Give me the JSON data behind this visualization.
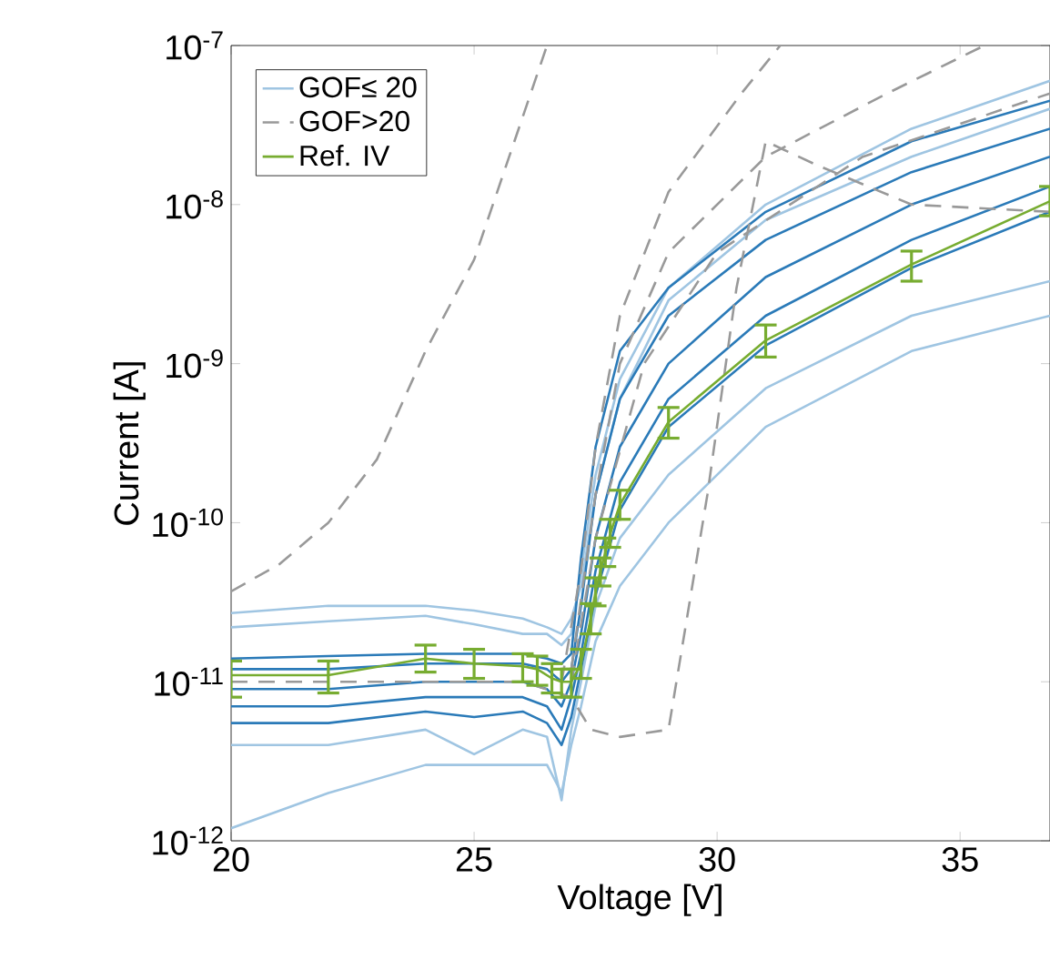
{
  "chart_data": {
    "type": "line",
    "xlabel": "Voltage [V]",
    "ylabel": "Current [A]",
    "log": "y",
    "xlim": [
      20,
      36.85
    ],
    "ylim": [
      1e-12,
      1e-07
    ],
    "xticks": [
      20,
      25,
      30,
      35
    ],
    "yticks": [
      {
        "value": 1e-12,
        "label": "10$^{-12}$"
      },
      {
        "value": 1e-11,
        "label": "10$^{-11}$"
      },
      {
        "value": 1e-10,
        "label": "10$^{-10}$"
      },
      {
        "value": 1e-09,
        "label": "10$^{-9}$"
      },
      {
        "value": 1e-08,
        "label": "10$^{-8}$"
      },
      {
        "value": 1e-07,
        "label": "10$^{-7}$"
      }
    ],
    "legend": "top left",
    "series": [
      {
        "name": "GOF≤ 20",
        "color": "#9fc5e2",
        "x": [
          20,
          22,
          24,
          25,
          26,
          26.5,
          26.8,
          27,
          27.2,
          27.5,
          28,
          29,
          31,
          34,
          36.85
        ],
        "values": [
          2.2e-11,
          2.4e-11,
          2.6e-11,
          2.3e-11,
          2e-11,
          2e-11,
          1.7e-11,
          2e-11,
          5e-11,
          2e-10,
          8e-10,
          3e-09,
          1e-08,
          3e-08,
          6e-08
        ]
      },
      {
        "color": "#9fc5e2",
        "x": [
          20,
          22,
          24,
          25,
          26,
          26.5,
          26.8,
          27,
          27.2,
          27.5,
          28,
          29,
          31,
          34,
          36.85
        ],
        "values": [
          2.7e-11,
          3e-11,
          3e-11,
          2.8e-11,
          2.5e-11,
          2.2e-11,
          2e-11,
          2.5e-11,
          4e-11,
          1.5e-10,
          6e-10,
          2.5e-09,
          8e-09,
          2e-08,
          4e-08
        ]
      },
      {
        "color": "#9fc5e2",
        "x": [
          20,
          22,
          24,
          25,
          26,
          26.5,
          26.8,
          27,
          27.2,
          27.5,
          28,
          29,
          31,
          34,
          36.85
        ],
        "values": [
          1.2e-12,
          2e-12,
          3e-12,
          3e-12,
          3e-12,
          3e-12,
          2e-12,
          4e-12,
          7e-12,
          1.8e-11,
          4e-11,
          1e-10,
          4e-10,
          1.2e-09,
          2e-09
        ]
      },
      {
        "color": "#9fc5e2",
        "x": [
          20,
          22,
          24,
          25,
          26,
          26.5,
          26.8,
          27,
          27.2,
          27.5,
          28,
          29,
          31,
          34,
          36.85
        ],
        "values": [
          4e-12,
          4e-12,
          5e-12,
          3.5e-12,
          5e-12,
          4.5e-12,
          1.8e-12,
          5e-12,
          1e-11,
          3e-11,
          8e-11,
          2e-10,
          7e-10,
          2e-09,
          3.3e-09
        ]
      },
      {
        "color": "#2a7ab8",
        "x": [
          20,
          22,
          24,
          25,
          26,
          26.5,
          26.8,
          27,
          27.2,
          27.5,
          28,
          29,
          31,
          34,
          36.85
        ],
        "values": [
          1.4e-11,
          1.45e-11,
          1.5e-11,
          1.5e-11,
          1.5e-11,
          1.4e-11,
          1.3e-11,
          1.5e-11,
          6e-11,
          3e-10,
          1.2e-09,
          3e-09,
          9e-09,
          2.5e-08,
          4.5e-08
        ]
      },
      {
        "color": "#2a7ab8",
        "x": [
          20,
          22,
          24,
          25,
          26,
          26.5,
          26.8,
          27,
          27.2,
          27.5,
          28,
          29,
          31,
          34,
          36.85
        ],
        "values": [
          1.2e-11,
          1.2e-11,
          1.3e-11,
          1.3e-11,
          1.3e-11,
          1.2e-11,
          1e-11,
          1.2e-11,
          3e-11,
          1.5e-10,
          6e-10,
          2e-09,
          6e-09,
          1.6e-08,
          3e-08
        ]
      },
      {
        "color": "#2a7ab8",
        "x": [
          20,
          22,
          24,
          25,
          26,
          26.5,
          26.8,
          27,
          27.2,
          27.5,
          28,
          29,
          31,
          34,
          36.85
        ],
        "values": [
          9e-12,
          9e-12,
          1e-11,
          1e-11,
          1e-11,
          9e-12,
          7e-12,
          1e-11,
          2e-11,
          8e-11,
          3e-10,
          1e-09,
          3.5e-09,
          1e-08,
          2e-08
        ]
      },
      {
        "color": "#2a7ab8",
        "x": [
          20,
          22,
          24,
          25,
          26,
          26.5,
          26.8,
          27,
          27.2,
          27.5,
          28,
          29,
          31,
          34,
          36.85
        ],
        "values": [
          7e-12,
          7e-12,
          8e-12,
          8e-12,
          8e-12,
          7e-12,
          5e-12,
          8e-12,
          1.5e-11,
          5e-11,
          1.8e-10,
          6e-10,
          2e-09,
          6e-09,
          1.3e-08
        ]
      },
      {
        "color": "#2a7ab8",
        "x": [
          20,
          22,
          24,
          25,
          26,
          26.5,
          26.8,
          27,
          27.2,
          27.5,
          28,
          29,
          31,
          34,
          36.85
        ],
        "values": [
          5.5e-12,
          5.5e-12,
          6.5e-12,
          6e-12,
          6.5e-12,
          5.5e-12,
          4e-12,
          6e-12,
          1.2e-11,
          3.5e-11,
          1.2e-10,
          4e-10,
          1.3e-09,
          4e-09,
          9e-09
        ]
      },
      {
        "name": "GOF>20",
        "line_style": "dashed",
        "color": "#999999",
        "x": [
          20,
          21,
          22,
          23,
          24,
          25,
          26.5
        ],
        "values": [
          3.7e-11,
          5.5e-11,
          1e-10,
          2.5e-10,
          1.2e-09,
          4.5e-09,
          1e-07
        ]
      },
      {
        "line_style": "dashed",
        "color": "#999999",
        "x": [
          20,
          26,
          27,
          27.4,
          28,
          29,
          29.8,
          30.4,
          31,
          32,
          34,
          36.85
        ],
        "values": [
          1e-11,
          1e-11,
          8e-12,
          5e-12,
          4.5e-12,
          5e-12,
          1.5e-10,
          3e-09,
          2.5e-08,
          1.8e-08,
          1e-08,
          9e-09
        ]
      },
      {
        "line_style": "dashed",
        "color": "#999999",
        "x": [
          26.8,
          27.2,
          27.5,
          28,
          29,
          30.5,
          31.3
        ],
        "values": [
          1e-11,
          5e-11,
          3e-10,
          2e-09,
          1.2e-08,
          5e-08,
          1e-07
        ]
      },
      {
        "line_style": "dashed",
        "color": "#999999",
        "x": [
          27,
          27.5,
          28,
          29,
          31,
          33.5,
          35.5
        ],
        "values": [
          1.2e-11,
          1.5e-10,
          1e-09,
          5e-09,
          2e-08,
          5e-08,
          1e-07
        ]
      },
      {
        "line_style": "dashed",
        "color": "#999999",
        "x": [
          27,
          27.5,
          28.5,
          30,
          33,
          36.85
        ],
        "values": [
          1e-11,
          8e-11,
          1e-09,
          5e-09,
          2e-08,
          5e-08
        ]
      },
      {
        "name": "Ref. IV",
        "color": "#77ac30",
        "x": [
          20,
          22,
          24,
          25,
          26,
          26.3,
          26.6,
          26.8,
          27,
          27.2,
          27.4,
          27.5,
          27.6,
          27.7,
          27.8,
          28,
          29,
          31,
          34,
          36.85
        ],
        "values": [
          1.1e-11,
          1.1e-11,
          1.4e-11,
          1.3e-11,
          1.25e-11,
          1.2e-11,
          1.05e-11,
          1e-11,
          1e-11,
          1.3e-11,
          2.5e-11,
          3.7e-11,
          5e-11,
          6.5e-11,
          8.5e-11,
          1.3e-10,
          4.3e-10,
          1.4e-09,
          4.2e-09,
          1.05e-08
        ],
        "errors": [
          [
            8e-12,
            1.35e-11
          ],
          [
            8.5e-12,
            1.35e-11
          ],
          [
            1.15e-11,
            1.7e-11
          ],
          [
            1.05e-11,
            1.6e-11
          ],
          [
            1e-11,
            1.5e-11
          ],
          [
            9.5e-12,
            1.45e-11
          ],
          [
            8.5e-12,
            1.3e-11
          ],
          [
            8e-12,
            1.2e-11
          ],
          [
            8e-12,
            1.2e-11
          ],
          [
            1.05e-11,
            1.6e-11
          ],
          [
            2e-11,
            3.1e-11
          ],
          [
            3e-11,
            4.5e-11
          ],
          [
            4e-11,
            6e-11
          ],
          [
            5.3e-11,
            8e-11
          ],
          [
            7e-11,
            1.05e-10
          ],
          [
            1.05e-10,
            1.6e-10
          ],
          [
            3.4e-10,
            5.3e-10
          ],
          [
            1.1e-09,
            1.75e-09
          ],
          [
            3.3e-09,
            5.1e-09
          ],
          [
            8.5e-09,
            1.3e-08
          ]
        ]
      }
    ]
  }
}
